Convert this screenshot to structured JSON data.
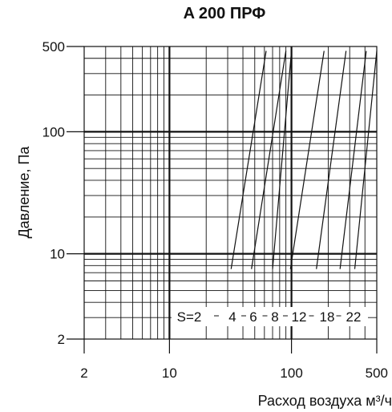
{
  "chart_data": {
    "type": "line",
    "title": "A 200 ПРФ",
    "xlabel": "Расход воздуха м³/ч",
    "ylabel": "Давление, Па",
    "x_scale": "log",
    "y_scale": "log",
    "xlim": [
      2,
      500
    ],
    "ylim": [
      2,
      500
    ],
    "grid": true,
    "x_ticks": [
      2,
      10,
      100,
      500
    ],
    "y_ticks": [
      2,
      10,
      100,
      500
    ],
    "x_tick_labels": [
      "2",
      "10",
      "100",
      "500"
    ],
    "y_tick_labels": [
      "2",
      "10",
      "100",
      "500"
    ],
    "series_label_prefix": "S=",
    "series": [
      {
        "name": "2",
        "points": [
          [
            32,
            7.5
          ],
          [
            62,
            460
          ]
        ]
      },
      {
        "name": "4",
        "points": [
          [
            47,
            7.5
          ],
          [
            90,
            460
          ]
        ]
      },
      {
        "name": "6",
        "points": [
          [
            70,
            7.5
          ],
          [
            100,
            460
          ]
        ]
      },
      {
        "name": "8",
        "points": [
          [
            98,
            7.5
          ],
          [
            185,
            460
          ]
        ]
      },
      {
        "name": "12",
        "points": [
          [
            160,
            7.5
          ],
          [
            280,
            460
          ]
        ]
      },
      {
        "name": "18",
        "points": [
          [
            250,
            7.5
          ],
          [
            410,
            460
          ]
        ]
      },
      {
        "name": "22",
        "points": [
          [
            330,
            7.5
          ],
          [
            500,
            460
          ]
        ]
      }
    ]
  }
}
